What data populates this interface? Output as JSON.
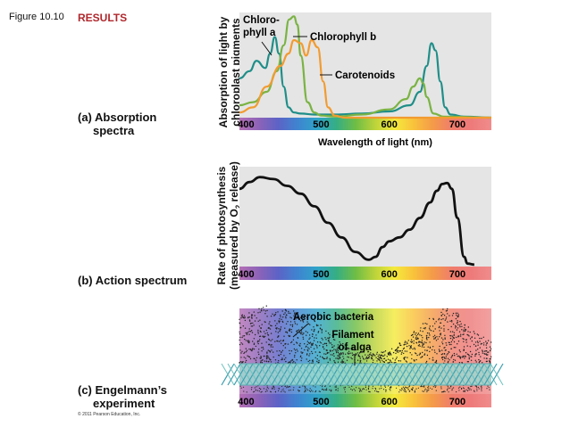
{
  "figure_label": "Figure 10.10",
  "section_title": "RESULTS",
  "copyright": "© 2011 Pearson Education, Inc.",
  "panels": {
    "a": {
      "letter": "(a)",
      "title_line1": "Absorption",
      "title_line2": "spectra",
      "ylabel_line1": "Absorption of light by",
      "ylabel_line2": "chloroplast pigments",
      "xlabel": "Wavelength of light (nm)"
    },
    "b": {
      "letter": "(b)",
      "title_line1": "Action spectrum",
      "ylabel_line1": "Rate of photosynthesis",
      "ylabel_line2_pre": "(measured by O",
      "ylabel_line2_sub": "2",
      "ylabel_line2_post": " release)"
    },
    "c": {
      "letter": "(c)",
      "title_line1": "Engelmann’s",
      "title_line2": "experiment",
      "label_bacteria": "Aerobic bacteria",
      "label_filament_line1": "Filament",
      "label_filament_line2": "of alga"
    }
  },
  "chart_data": [
    {
      "type": "line",
      "title": "Absorption spectra",
      "xlabel": "Wavelength of light (nm)",
      "ylabel": "Absorption of light by chloroplast pigments",
      "xlim": [
        380,
        750
      ],
      "ylim": [
        0,
        1
      ],
      "xticks": [
        400,
        500,
        600,
        700
      ],
      "series": [
        {
          "name": "Chlorophyll a",
          "label_line1": "Chloro-",
          "label_line2": "phyll a",
          "color": "#1f8e88",
          "x": [
            380,
            395,
            405,
            418,
            425,
            432,
            438,
            445,
            452,
            460,
            470,
            490,
            520,
            560,
            600,
            630,
            645,
            655,
            662,
            668,
            675,
            682,
            690,
            710,
            750
          ],
          "y": [
            0.38,
            0.45,
            0.55,
            0.48,
            0.62,
            0.78,
            0.62,
            0.3,
            0.1,
            0.05,
            0.04,
            0.03,
            0.03,
            0.04,
            0.06,
            0.12,
            0.25,
            0.5,
            0.72,
            0.65,
            0.35,
            0.1,
            0.03,
            0.01,
            0.0
          ]
        },
        {
          "name": "Chlorophyll b",
          "color": "#7ab343",
          "x": [
            380,
            400,
            420,
            435,
            445,
            453,
            460,
            465,
            470,
            480,
            490,
            500,
            520,
            560,
            600,
            625,
            635,
            645,
            650,
            655,
            665,
            680,
            750
          ],
          "y": [
            0.12,
            0.15,
            0.25,
            0.45,
            0.7,
            0.95,
            0.98,
            0.9,
            0.6,
            0.15,
            0.05,
            0.02,
            0.01,
            0.03,
            0.08,
            0.18,
            0.3,
            0.38,
            0.33,
            0.2,
            0.04,
            0.01,
            0.0
          ]
        },
        {
          "name": "Carotenoids",
          "color": "#f29b30",
          "x": [
            380,
            400,
            420,
            440,
            452,
            460,
            470,
            478,
            486,
            495,
            503,
            510,
            520,
            535,
            560,
            750
          ],
          "y": [
            0.05,
            0.1,
            0.3,
            0.5,
            0.62,
            0.75,
            0.72,
            0.6,
            0.75,
            0.68,
            0.35,
            0.1,
            0.02,
            0.0,
            0.0,
            0.0
          ]
        }
      ]
    },
    {
      "type": "line",
      "title": "Action spectrum",
      "ylabel": "Rate of photosynthesis (measured by O2 release)",
      "xlim": [
        380,
        750
      ],
      "ylim": [
        0,
        1
      ],
      "xticks": [
        400,
        500,
        600,
        700
      ],
      "series": [
        {
          "name": "Action spectrum",
          "color": "#111111",
          "x": [
            380,
            395,
            410,
            430,
            450,
            470,
            490,
            510,
            530,
            550,
            570,
            580,
            590,
            600,
            615,
            630,
            645,
            660,
            670,
            678,
            685,
            692,
            700,
            710,
            715,
            725
          ],
          "y": [
            0.8,
            0.87,
            0.92,
            0.9,
            0.83,
            0.75,
            0.62,
            0.45,
            0.3,
            0.15,
            0.07,
            0.1,
            0.2,
            0.26,
            0.3,
            0.38,
            0.5,
            0.66,
            0.78,
            0.85,
            0.86,
            0.8,
            0.5,
            0.1,
            0.03,
            0.02
          ]
        }
      ]
    },
    {
      "type": "scatter",
      "title": "Engelmann’s experiment",
      "description_values": {
        "xlim": [
          380,
          750
        ],
        "xticks": [
          400,
          500,
          600,
          700
        ],
        "bacteria_density_x": [
          380,
          400,
          420,
          440,
          460,
          480,
          500,
          520,
          540,
          560,
          580,
          600,
          620,
          640,
          660,
          680,
          700,
          720,
          750
        ],
        "bacteria_density": [
          0.8,
          0.9,
          1.0,
          0.95,
          0.9,
          0.8,
          0.6,
          0.35,
          0.15,
          0.08,
          0.05,
          0.1,
          0.3,
          0.55,
          0.75,
          0.95,
          0.9,
          0.5,
          0.3
        ]
      }
    }
  ],
  "spectrum_colors": [
    "#b46fb4",
    "#8c63b8",
    "#5c63c6",
    "#3f84d0",
    "#2fa3c8",
    "#36ae84",
    "#6fbd45",
    "#bcd33a",
    "#f4ea3d",
    "#f9c23b",
    "#f49a4a",
    "#ef7c6c",
    "#ee7b7b",
    "#f08c8c"
  ]
}
